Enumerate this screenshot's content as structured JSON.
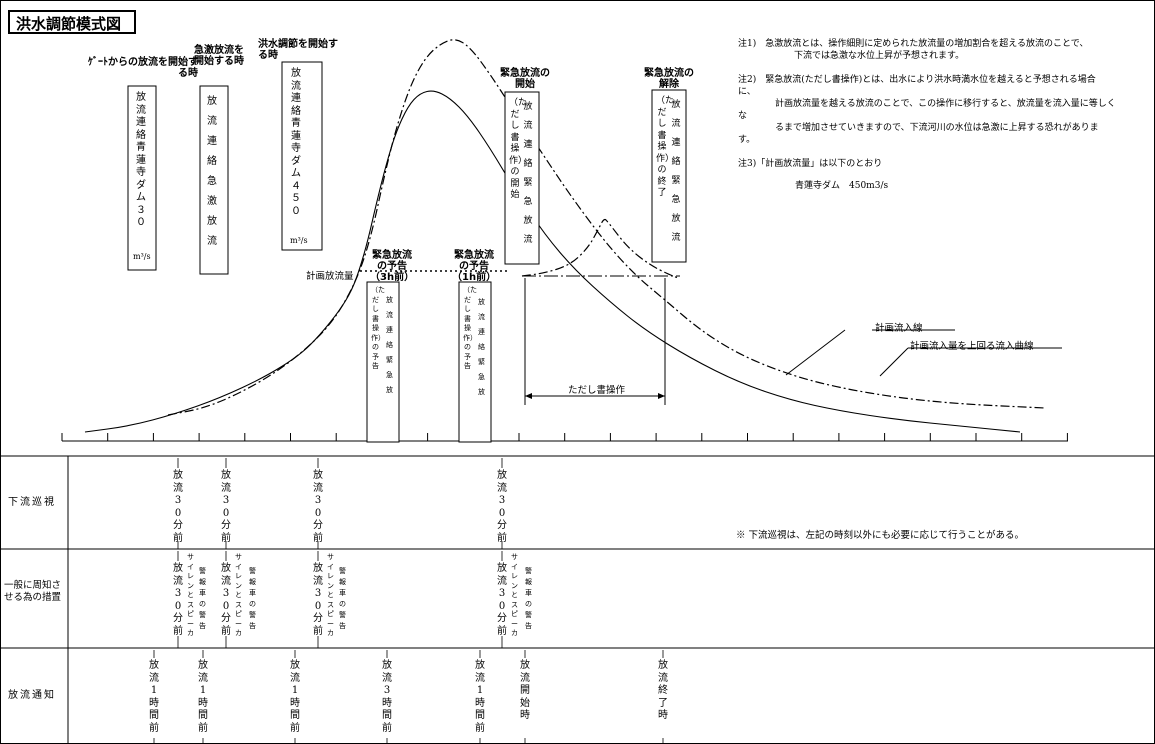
{
  "title": "洪水調節模式図",
  "notes": {
    "n1a": "注1)　急激放流とは、操作細則に定められた放流量の増加割合を超える放流のことで、",
    "n1b": "下流では急激な水位上昇が予想されます。",
    "n2a": "注2)　緊急放流(ただし書操作)とは、出水により洪水時満水位を越えると予想される場合",
    "n2b": "に、",
    "n2c": "計画放流量を越える放流のことで、この操作に移行すると、放流量を流入量に等しく",
    "n2d": "な",
    "n2e": "るまで増加させていきますので、下流河川の水位は急激に上昇する恐れがありま",
    "n2f": "す。",
    "n3a": "注3)「計画放流量」は以下のとおり",
    "n3b": "青蓮寺ダム　450m3/s"
  },
  "events": {
    "gate_start": {
      "header": "ｹﾞｰﾄからの放流を開始する時",
      "box": "放流連絡　青蓮寺ダム３０",
      "unit": "m³/s"
    },
    "rapid": {
      "header": "急激放流を開始する時",
      "box": "放流連絡　急激放流"
    },
    "control": {
      "header": "洪水調節を開始する時",
      "box": "放流連絡　青蓮寺ダム４５０",
      "unit": "m³/s"
    },
    "em_3h": {
      "header": "緊急放流の予告（3h前）",
      "box1": "（ただし書操作）の予告",
      "box2": "放流連絡緊急放"
    },
    "em_1h": {
      "header": "緊急放流の予告（1h前）",
      "box1": "（ただし書操作）の予告",
      "box2": "放流連絡緊急放"
    },
    "em_start": {
      "header": "緊急放流の開始",
      "box1": "（ただし書操作）の開始",
      "box2": "放流連絡緊急放流"
    },
    "em_end": {
      "header": "緊急放流の解除",
      "box1": "（ただし書操作）の終了",
      "box2": "放流連絡緊急放流"
    }
  },
  "labels": {
    "plan_discharge": "計画放流量",
    "proviso": "ただし書操作",
    "plan_inflow": "計画流入線",
    "over_curve": "計画流入量を上回る流入曲線"
  },
  "rows": {
    "patrol": {
      "label": "下流巡視",
      "note": "※ 下流巡視は、左記の時刻以外にも必要に応じて行うことがある。",
      "items": [
        "放流30分前",
        "放流30分前",
        "放流30分前",
        "放流30分前"
      ]
    },
    "public": {
      "label": "一般に周知させる為の措置",
      "items": [
        "放流30分前",
        "サイレンとスピーカ",
        "警報車の警告",
        "放流30分前",
        "サイレンとスピーカ",
        "警報車の警告",
        "放流30分前",
        "サイレンとスピーカ",
        "警報車の警告",
        "放流30分前",
        "サイレンとスピーカ",
        "警報車の警告"
      ]
    },
    "notice": {
      "label": "放流通知",
      "items": [
        "放流1時間前",
        "放流1時間前",
        "放流1時間前",
        "放流3時間前",
        "放流1時間前",
        "放流開始時",
        "放流終了時"
      ]
    }
  },
  "chart_data": {
    "type": "line",
    "series": [
      {
        "name": "計画流入線",
        "style": "solid",
        "points": [
          [
            85,
            432
          ],
          [
            130,
            426
          ],
          [
            175,
            414
          ],
          [
            220,
            398
          ],
          [
            265,
            377
          ],
          [
            300,
            355
          ],
          [
            320,
            335
          ],
          [
            340,
            310
          ],
          [
            352,
            290
          ],
          [
            360,
            268
          ],
          [
            368,
            240
          ],
          [
            376,
            205
          ],
          [
            386,
            165
          ],
          [
            396,
            132
          ],
          [
            408,
            106
          ],
          [
            420,
            93
          ],
          [
            434,
            90
          ],
          [
            450,
            98
          ],
          [
            468,
            116
          ],
          [
            490,
            148
          ],
          [
            515,
            190
          ],
          [
            545,
            235
          ],
          [
            575,
            270
          ],
          [
            610,
            302
          ],
          [
            645,
            330
          ],
          [
            690,
            358
          ],
          [
            740,
            383
          ],
          [
            790,
            400
          ],
          [
            840,
            411
          ],
          [
            900,
            420
          ],
          [
            960,
            426
          ],
          [
            1020,
            432
          ]
        ]
      },
      {
        "name": "計画流入量を上回る流入曲線",
        "style": "dashdot",
        "points": [
          [
            168,
            415
          ],
          [
            205,
            408
          ],
          [
            240,
            393
          ],
          [
            275,
            373
          ],
          [
            305,
            350
          ],
          [
            330,
            325
          ],
          [
            348,
            297
          ],
          [
            362,
            266
          ],
          [
            373,
            228
          ],
          [
            383,
            182
          ],
          [
            395,
            132
          ],
          [
            410,
            86
          ],
          [
            425,
            58
          ],
          [
            440,
            44
          ],
          [
            455,
            38
          ],
          [
            470,
            47
          ],
          [
            490,
            74
          ],
          [
            512,
            108
          ],
          [
            540,
            150
          ],
          [
            570,
            195
          ],
          [
            605,
            242
          ],
          [
            635,
            275
          ],
          [
            665,
            300
          ],
          [
            700,
            330
          ],
          [
            740,
            355
          ],
          [
            790,
            375
          ],
          [
            840,
            388
          ],
          [
            900,
            398
          ],
          [
            960,
            404
          ],
          [
            1045,
            408
          ]
        ]
      },
      {
        "name": "放流量",
        "style": "dashdot",
        "points": [
          [
            522,
            276
          ],
          [
            545,
            273
          ],
          [
            570,
            265
          ],
          [
            588,
            248
          ],
          [
            598,
            230
          ],
          [
            604,
            218
          ],
          [
            608,
            222
          ],
          [
            628,
            248
          ],
          [
            650,
            265
          ],
          [
            668,
            274
          ],
          [
            678,
            278
          ]
        ]
      }
    ],
    "plan_discharge_level": "計画放流量"
  }
}
